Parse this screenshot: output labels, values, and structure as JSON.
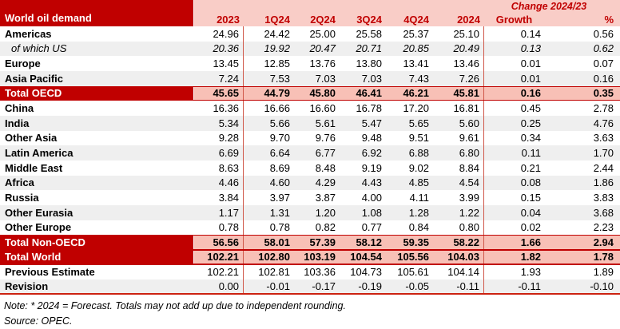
{
  "chart_data": {
    "type": "table",
    "title": "World oil demand",
    "change_header": "Change 2024/23",
    "columns": [
      "2023",
      "1Q24",
      "2Q24",
      "3Q24",
      "4Q24",
      "2024",
      "Growth",
      "%"
    ],
    "rows": [
      {
        "label": "Americas",
        "type": "region",
        "values": [
          "24.96",
          "24.42",
          "25.00",
          "25.58",
          "25.37",
          "25.10",
          "0.14",
          "0.56"
        ]
      },
      {
        "label": "of which US",
        "type": "sub",
        "values": [
          "20.36",
          "19.92",
          "20.47",
          "20.71",
          "20.85",
          "20.49",
          "0.13",
          "0.62"
        ]
      },
      {
        "label": "Europe",
        "type": "region",
        "values": [
          "13.45",
          "12.85",
          "13.76",
          "13.80",
          "13.41",
          "13.46",
          "0.01",
          "0.07"
        ]
      },
      {
        "label": "Asia Pacific",
        "type": "region",
        "values": [
          "7.24",
          "7.53",
          "7.03",
          "7.03",
          "7.43",
          "7.26",
          "0.01",
          "0.16"
        ]
      },
      {
        "label": "Total OECD",
        "type": "total",
        "values": [
          "45.65",
          "44.79",
          "45.80",
          "46.41",
          "46.21",
          "45.81",
          "0.16",
          "0.35"
        ]
      },
      {
        "label": "China",
        "type": "region",
        "values": [
          "16.36",
          "16.66",
          "16.60",
          "16.78",
          "17.20",
          "16.81",
          "0.45",
          "2.78"
        ]
      },
      {
        "label": "India",
        "type": "region",
        "values": [
          "5.34",
          "5.66",
          "5.61",
          "5.47",
          "5.65",
          "5.60",
          "0.25",
          "4.76"
        ]
      },
      {
        "label": "Other Asia",
        "type": "region",
        "values": [
          "9.28",
          "9.70",
          "9.76",
          "9.48",
          "9.51",
          "9.61",
          "0.34",
          "3.63"
        ]
      },
      {
        "label": "Latin America",
        "type": "region",
        "values": [
          "6.69",
          "6.64",
          "6.77",
          "6.92",
          "6.88",
          "6.80",
          "0.11",
          "1.70"
        ]
      },
      {
        "label": "Middle East",
        "type": "region",
        "values": [
          "8.63",
          "8.69",
          "8.48",
          "9.19",
          "9.02",
          "8.84",
          "0.21",
          "2.44"
        ]
      },
      {
        "label": "Africa",
        "type": "region",
        "values": [
          "4.46",
          "4.60",
          "4.29",
          "4.43",
          "4.85",
          "4.54",
          "0.08",
          "1.86"
        ]
      },
      {
        "label": "Russia",
        "type": "region",
        "values": [
          "3.84",
          "3.97",
          "3.87",
          "4.00",
          "4.11",
          "3.99",
          "0.15",
          "3.83"
        ]
      },
      {
        "label": "Other Eurasia",
        "type": "region",
        "values": [
          "1.17",
          "1.31",
          "1.20",
          "1.08",
          "1.28",
          "1.22",
          "0.04",
          "3.68"
        ]
      },
      {
        "label": "Other Europe",
        "type": "region",
        "values": [
          "0.78",
          "0.78",
          "0.82",
          "0.77",
          "0.84",
          "0.80",
          "0.02",
          "2.23"
        ]
      },
      {
        "label": "Total Non-OECD",
        "type": "total",
        "values": [
          "56.56",
          "58.01",
          "57.39",
          "58.12",
          "59.35",
          "58.22",
          "1.66",
          "2.94"
        ]
      },
      {
        "label": "Total World",
        "type": "total-world",
        "values": [
          "102.21",
          "102.80",
          "103.19",
          "104.54",
          "105.56",
          "104.03",
          "1.82",
          "1.78"
        ]
      },
      {
        "label": "Previous Estimate",
        "type": "region",
        "values": [
          "102.21",
          "102.81",
          "103.36",
          "104.73",
          "105.61",
          "104.14",
          "1.93",
          "1.89"
        ]
      },
      {
        "label": "Revision",
        "type": "region",
        "values": [
          "0.00",
          "-0.01",
          "-0.17",
          "-0.19",
          "-0.05",
          "-0.11",
          "-0.11",
          "-0.10"
        ]
      }
    ]
  },
  "notes": {
    "note": "Note: * 2024 = Forecast. Totals may not add up due to independent rounding.",
    "source": "Source: OPEC."
  },
  "colors": {
    "dark_red": "#C00000",
    "header_pink": "#F9CDC7",
    "total_row_pink": "#F8C0B6",
    "stripe_gray": "#EFEFEF",
    "divider_red": "#D0584A",
    "header_text_red": "#C00000"
  }
}
